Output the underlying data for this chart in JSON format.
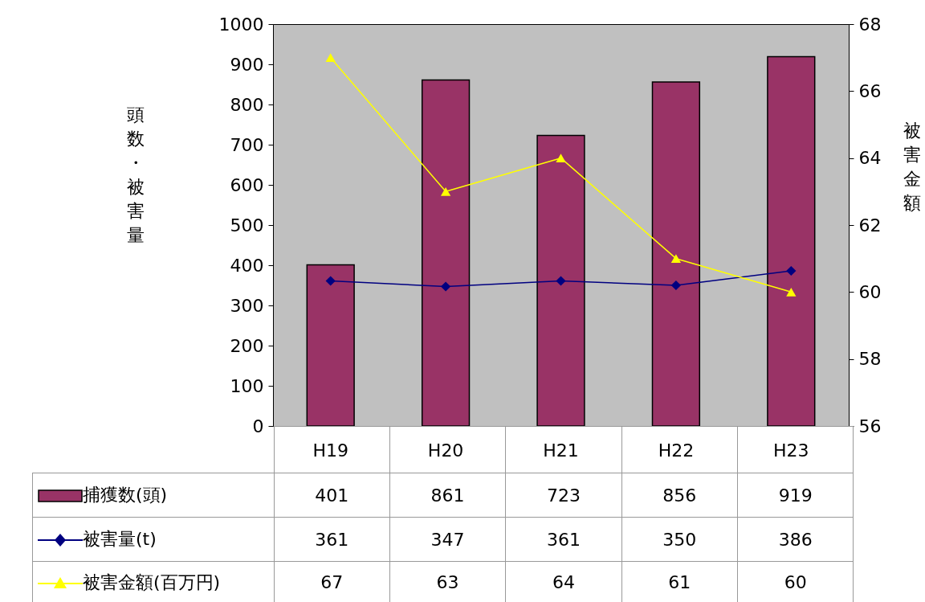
{
  "chart_data": {
    "type": "bar",
    "categories": [
      "H19",
      "H20",
      "H21",
      "H22",
      "H23"
    ],
    "ylabel": "頭数・被害量",
    "y2label": "被害金額",
    "series": [
      {
        "name": "捕獲数(頭)",
        "color": "#993366",
        "values": [
          401,
          861,
          723,
          856,
          919
        ]
      },
      {
        "name": "被害量(t)",
        "type": "line",
        "color": "#000080",
        "marker": "diamond",
        "values": [
          361,
          347,
          361,
          350,
          386
        ]
      },
      {
        "name": "被害金額(百万円)",
        "type": "line",
        "color": "#ffff00",
        "marker": "triangle",
        "axis": "y2",
        "values": [
          67,
          63,
          64,
          61,
          60
        ]
      }
    ],
    "ylim": [
      0,
      1000
    ],
    "yticks": [
      0,
      100,
      200,
      300,
      400,
      500,
      600,
      700,
      800,
      900,
      1000
    ],
    "y2lim": [
      56,
      68
    ],
    "y2ticks": [
      56,
      58,
      60,
      62,
      64,
      66,
      68
    ],
    "legend": "bottom",
    "data_labels": true
  }
}
